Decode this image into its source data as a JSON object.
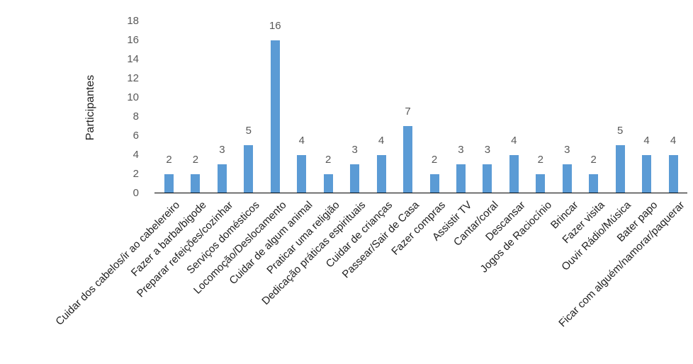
{
  "chart_data": {
    "type": "bar",
    "title": "",
    "xlabel": "",
    "ylabel": "Participantes",
    "categories": [
      "Cuidar dos cabelos/ir ao cabelereiro",
      "Fazer a barba/bigode",
      "Preparar refeições/cozinhar",
      "Serviços domésticos",
      "Locomoção/Deslocamento",
      "Cuidar de algum animal",
      "Praticar uma religião",
      "Dedicação práticas espirituais",
      "Cuidar de crianças",
      "Passear/Sair de Casa",
      "Fazer compras",
      "Assistir TV",
      "Cantar/coral",
      "Descansar",
      "Jogos de Raciocínio",
      "Brincar",
      "Fazer visita",
      "Ouvir Rádio/Música",
      "Bater papo",
      "Ficar com alguém/namorar/paquerar"
    ],
    "values": [
      2,
      2,
      3,
      5,
      16,
      4,
      2,
      3,
      4,
      7,
      2,
      3,
      3,
      4,
      2,
      3,
      2,
      5,
      4,
      4
    ],
    "ylim": [
      0,
      18
    ],
    "y_ticks": [
      0,
      2,
      4,
      6,
      8,
      10,
      12,
      14,
      16,
      18
    ],
    "grid": false,
    "legend": false,
    "data_labels_visible": true,
    "category_label_rotation_deg": 45,
    "bar_color": "#5B9BD5",
    "axis_line_color": "#000000",
    "tick_label_color": "#595959",
    "value_label_color": "#595959",
    "category_label_color": "#1f1f1f"
  }
}
